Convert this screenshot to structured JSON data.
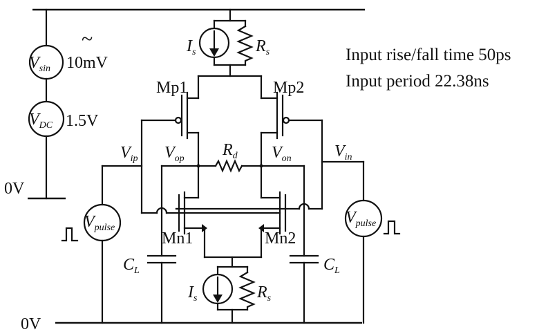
{
  "notes": {
    "line1": "Input rise/fall time 50ps",
    "line2": "Input period 22.38ns"
  },
  "sources": {
    "vsin": {
      "sym": "V",
      "sub": "sin",
      "value": "10mV",
      "ac_symbol": "~"
    },
    "vdc": {
      "sym": "V",
      "sub": "DC",
      "value": "1.5V"
    },
    "vpulse_left": {
      "sym": "V",
      "sub": "pulse"
    },
    "vpulse_right": {
      "sym": "V",
      "sub": "pulse"
    }
  },
  "ground": {
    "left": "0V",
    "bottom": "0V"
  },
  "current_sources": {
    "top": {
      "i_sym": "I",
      "i_sub": "s",
      "r_sym": "R",
      "r_sub": "s"
    },
    "bottom": {
      "i_sym": "I",
      "i_sub": "s",
      "r_sym": "R",
      "r_sub": "s"
    }
  },
  "transistors": {
    "mp1": "Mp1",
    "mp2": "Mp2",
    "mn1": "Mn1",
    "mn2": "Mn2"
  },
  "nodes": {
    "vip": {
      "sym": "V",
      "sub": "ip"
    },
    "vop": {
      "sym": "V",
      "sub": "op"
    },
    "von": {
      "sym": "V",
      "sub": "on"
    },
    "vin": {
      "sym": "V",
      "sub": "in"
    }
  },
  "resistor_d": {
    "sym": "R",
    "sub": "d"
  },
  "caps": {
    "left": {
      "sym": "C",
      "sub": "L"
    },
    "right": {
      "sym": "C",
      "sub": "L"
    }
  }
}
